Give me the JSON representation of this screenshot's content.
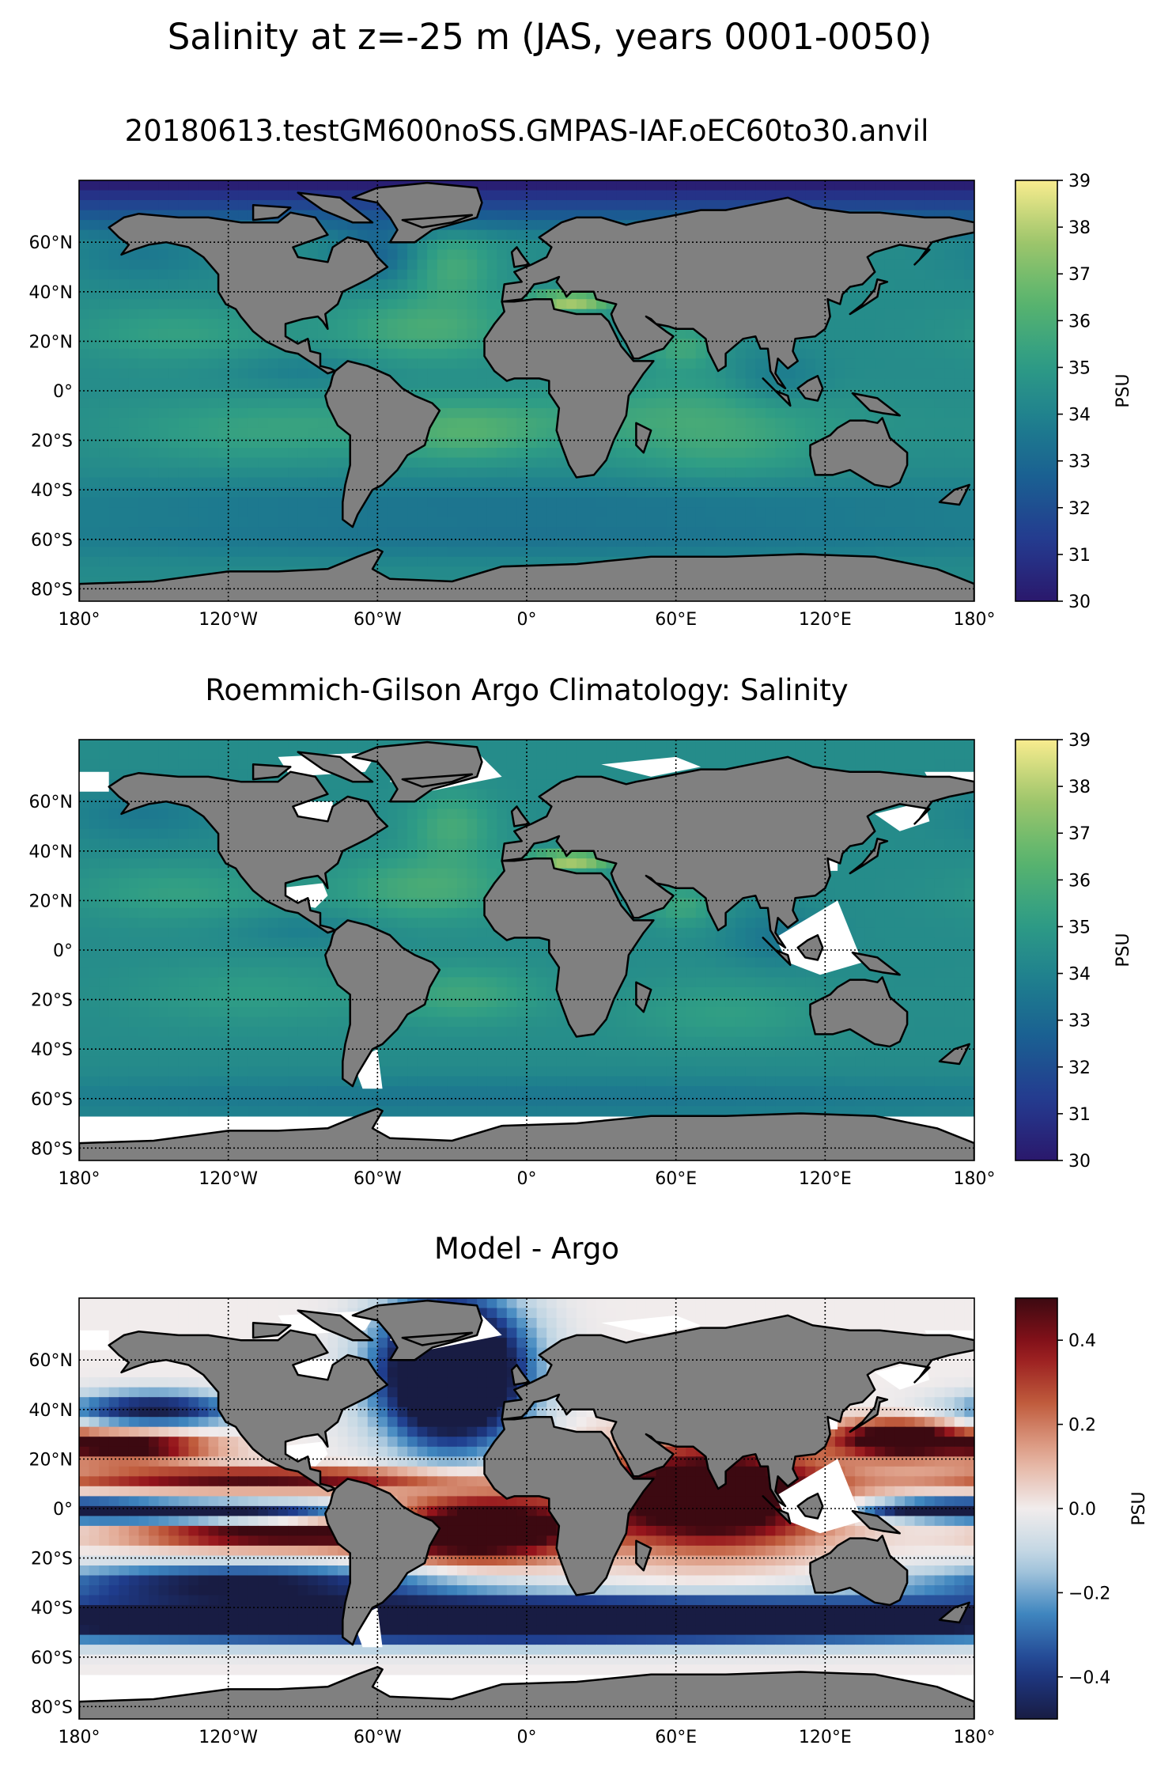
{
  "figure": {
    "suptitle": "Salinity at z=-25 m (JAS, years 0001-0050)"
  },
  "colors": {
    "land": "#808080",
    "coast": "#000000",
    "haline": [
      "#2a186c",
      "#243a8f",
      "#1a5e92",
      "#1e7f8e",
      "#2f9d85",
      "#5ab46d",
      "#9fc66b",
      "#f9ec8f"
    ],
    "balance": [
      "#181c43",
      "#1f3d8d",
      "#3f86bf",
      "#b9d2e2",
      "#f1ecec",
      "#e3ab96",
      "#c05c3d",
      "#94131b",
      "#3c0911"
    ]
  },
  "chart_data": [
    {
      "type": "heatmap",
      "title": "20180613.testGM600noSS.GMPAS-IAF.oEC60to30.anvil",
      "xlabel": "",
      "ylabel": "",
      "xlim": [
        -180,
        180
      ],
      "ylim": [
        -85,
        85
      ],
      "xticks": [
        -180,
        -120,
        -60,
        0,
        60,
        120,
        180
      ],
      "xtick_labels": [
        "180°",
        "120°W",
        "60°W",
        "0°",
        "60°E",
        "120°E",
        "180°"
      ],
      "yticks": [
        60,
        40,
        20,
        0,
        -20,
        -40,
        -60,
        -80
      ],
      "ytick_labels": [
        "60°N",
        "40°N",
        "20°N",
        "0°",
        "20°S",
        "40°S",
        "60°S",
        "80°S"
      ],
      "grid": true,
      "colorbar": {
        "label": "PSU",
        "vmin": 30,
        "vmax": 39,
        "ticks": [
          30,
          31,
          32,
          33,
          34,
          35,
          36,
          37,
          38,
          39
        ],
        "tick_labels": [
          "30",
          "31",
          "32",
          "33",
          "34",
          "35",
          "36",
          "37",
          "38",
          "39"
        ],
        "cmap": "haline"
      },
      "field": "model_salinity",
      "missing_south_of": -78
    },
    {
      "type": "heatmap",
      "title": "Roemmich-Gilson Argo Climatology: Salinity",
      "xlabel": "",
      "ylabel": "",
      "xlim": [
        -180,
        180
      ],
      "ylim": [
        -85,
        85
      ],
      "xticks": [
        -180,
        -120,
        -60,
        0,
        60,
        120,
        180
      ],
      "xtick_labels": [
        "180°",
        "120°W",
        "60°W",
        "0°",
        "60°E",
        "120°E",
        "180°"
      ],
      "yticks": [
        60,
        40,
        20,
        0,
        -20,
        -40,
        -60,
        -80
      ],
      "ytick_labels": [
        "60°N",
        "40°N",
        "20°N",
        "0°",
        "20°S",
        "40°S",
        "60°S",
        "80°S"
      ],
      "grid": true,
      "colorbar": {
        "label": "PSU",
        "vmin": 30,
        "vmax": 39,
        "ticks": [
          30,
          31,
          32,
          33,
          34,
          35,
          36,
          37,
          38,
          39
        ],
        "tick_labels": [
          "30",
          "31",
          "32",
          "33",
          "34",
          "35",
          "36",
          "37",
          "38",
          "39"
        ],
        "cmap": "haline"
      },
      "field": "argo_salinity",
      "missing_south_of": -65
    },
    {
      "type": "heatmap",
      "title": "Model - Argo",
      "xlabel": "",
      "ylabel": "",
      "xlim": [
        -180,
        180
      ],
      "ylim": [
        -85,
        85
      ],
      "xticks": [
        -180,
        -120,
        -60,
        0,
        60,
        120,
        180
      ],
      "xtick_labels": [
        "180°",
        "120°W",
        "60°W",
        "0°",
        "60°E",
        "120°E",
        "180°"
      ],
      "yticks": [
        60,
        40,
        20,
        0,
        -20,
        -40,
        -60,
        -80
      ],
      "ytick_labels": [
        "60°N",
        "40°N",
        "20°N",
        "0°",
        "20°S",
        "40°S",
        "60°S",
        "80°S"
      ],
      "grid": true,
      "colorbar": {
        "label": "PSU",
        "vmin": -0.5,
        "vmax": 0.5,
        "ticks": [
          -0.4,
          -0.2,
          0.0,
          0.2,
          0.4
        ],
        "tick_labels": [
          "−0.4",
          "−0.2",
          "0.0",
          "0.2",
          "0.4"
        ],
        "cmap": "balance"
      },
      "field": "difference",
      "missing_south_of": -65
    }
  ]
}
